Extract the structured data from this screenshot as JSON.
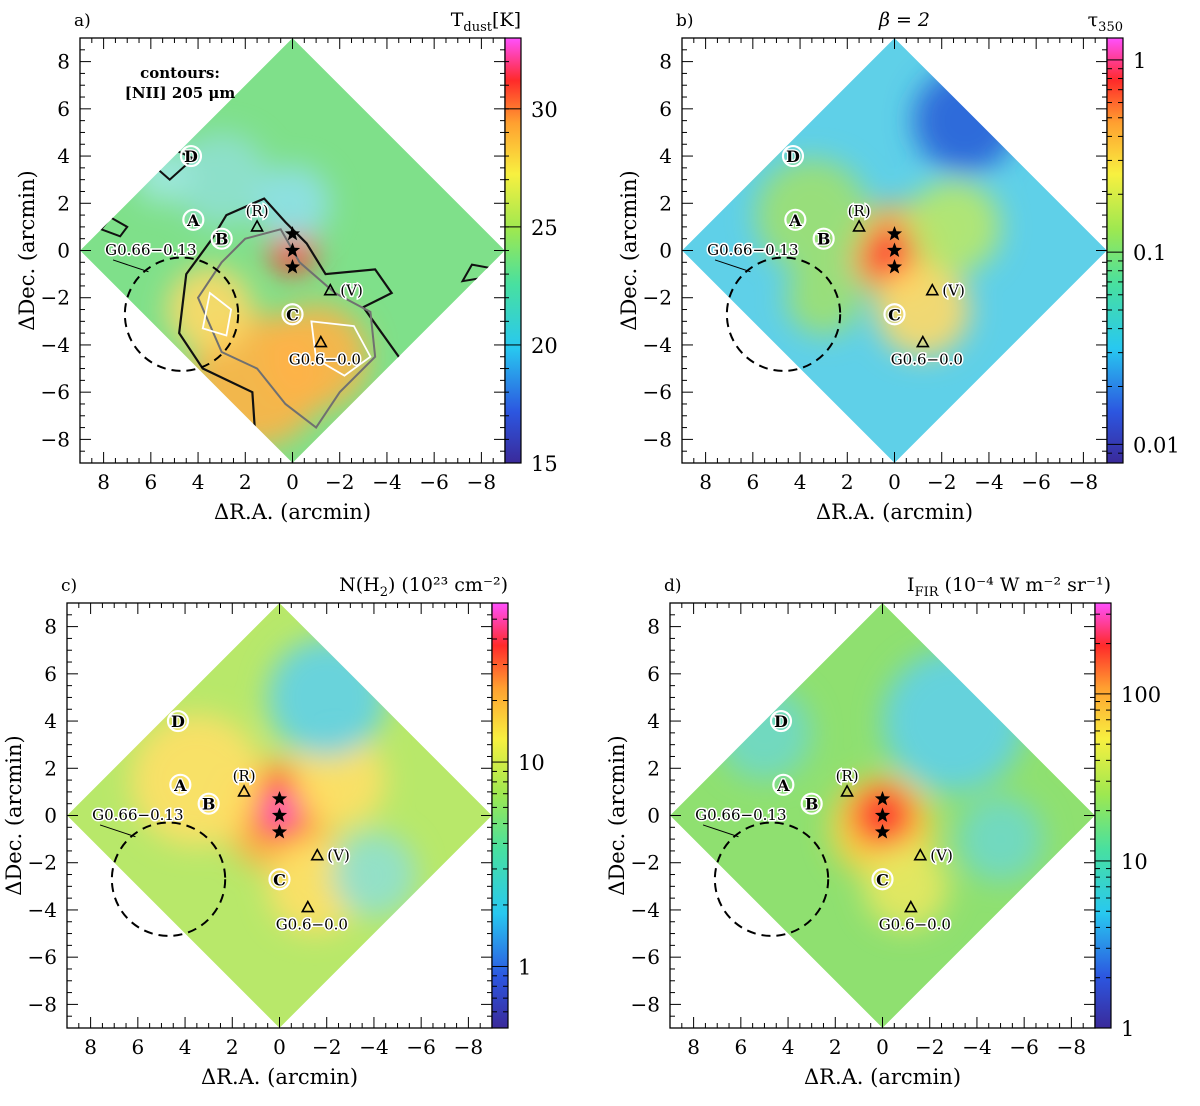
{
  "figure": {
    "description_free": true,
    "panels_count": 4
  },
  "chart_data": [
    {
      "type": "heatmap",
      "panel_label": "a)",
      "title": "T",
      "title_sub": "dust",
      "title_suffix": "[K]",
      "title_center": "",
      "xlabel": "ΔR.A. (arcmin)",
      "ylabel": "ΔDec. (arcmin)",
      "xlim": [
        9,
        -9
      ],
      "ylim": [
        -9,
        9
      ],
      "x_ticks": [
        8,
        6,
        4,
        2,
        0,
        -2,
        -4,
        -6,
        -8
      ],
      "x_tick_labels": [
        "8",
        "6",
        "4",
        "2",
        "0",
        "−2",
        "−4",
        "−6",
        "−8"
      ],
      "y_ticks": [
        8,
        6,
        4,
        2,
        0,
        -2,
        -4,
        -6,
        -8
      ],
      "y_tick_labels": [
        "8",
        "6",
        "4",
        "2",
        "0",
        "−2",
        "−4",
        "−6",
        "−8"
      ],
      "colorbar": {
        "scale": "linear",
        "range": [
          15,
          33
        ],
        "ticks": [
          15,
          20,
          25,
          30
        ],
        "tick_labels": [
          "15",
          "20",
          "25",
          "30"
        ]
      },
      "annotation": [
        "contours:",
        "[NII] 205 μm"
      ],
      "base_color": "#7fe08a",
      "blobs": [
        {
          "x": 1.5,
          "y": -5.5,
          "r": 2.8,
          "color": "#ffb347"
        },
        {
          "x": -1.0,
          "y": -4.5,
          "r": 2.2,
          "color": "#ffb347"
        },
        {
          "x": 3.5,
          "y": -2.5,
          "r": 1.8,
          "color": "#ffd966"
        },
        {
          "x": 0.0,
          "y": 0.0,
          "r": 1.0,
          "color": "#ff3030"
        },
        {
          "x": 3.0,
          "y": 3.0,
          "r": 2.0,
          "color": "#8fe0d0"
        },
        {
          "x": 0.0,
          "y": 2.0,
          "r": 1.6,
          "color": "#8fe0e8"
        },
        {
          "x": 5.5,
          "y": 3.2,
          "r": 1.2,
          "color": "#9fe8e0"
        }
      ],
      "show_contours": true,
      "sources": [
        {
          "label": "A",
          "x": 4.2,
          "y": 1.3
        },
        {
          "label": "B",
          "x": 3.0,
          "y": 0.5
        },
        {
          "label": "C",
          "x": 0.0,
          "y": -2.7
        },
        {
          "label": "D",
          "x": 4.3,
          "y": 4.0
        }
      ],
      "stars": [
        {
          "x": 0.0,
          "y": 0.7
        },
        {
          "x": 0.0,
          "y": 0.0
        },
        {
          "x": 0.0,
          "y": -0.7
        }
      ],
      "triangles": [
        {
          "label": "(R)",
          "x": 1.5,
          "y": 1.0,
          "label_pos": "above"
        },
        {
          "label": "(V)",
          "x": -1.6,
          "y": -1.7,
          "label_pos": "right"
        },
        {
          "label": "G0.6−0.0",
          "x": -1.2,
          "y": -3.9,
          "label_pos": "below"
        }
      ],
      "circle": {
        "label": "G0.66−0.13",
        "x": 4.7,
        "y": -2.7,
        "radius": 2.4
      }
    },
    {
      "type": "heatmap",
      "panel_label": "b)",
      "title": "τ",
      "title_sub": "350",
      "title_suffix": "",
      "title_center": "β = 2",
      "xlabel": "ΔR.A. (arcmin)",
      "ylabel": "ΔDec. (arcmin)",
      "xlim": [
        9,
        -9
      ],
      "ylim": [
        -9,
        9
      ],
      "x_ticks": [
        8,
        6,
        4,
        2,
        0,
        -2,
        -4,
        -6,
        -8
      ],
      "x_tick_labels": [
        "8",
        "6",
        "4",
        "2",
        "0",
        "−2",
        "−4",
        "−6",
        "−8"
      ],
      "y_ticks": [
        8,
        6,
        4,
        2,
        0,
        -2,
        -4,
        -6,
        -8
      ],
      "y_tick_labels": [
        "8",
        "6",
        "4",
        "2",
        "0",
        "−2",
        "−4",
        "−6",
        "−8"
      ],
      "colorbar": {
        "scale": "log",
        "range": [
          0.008,
          1.3
        ],
        "ticks": [
          0.01,
          0.1,
          1
        ],
        "tick_labels": [
          "0.01",
          "0.1",
          "1"
        ]
      },
      "annotation": [],
      "base_color": "#5fd0e8",
      "blobs": [
        {
          "x": 0.0,
          "y": 0.0,
          "r": 2.0,
          "color": "#ffb347"
        },
        {
          "x": 0.2,
          "y": -0.2,
          "r": 1.1,
          "color": "#ff3030"
        },
        {
          "x": -1.2,
          "y": -2.5,
          "r": 2.0,
          "color": "#ffd966"
        },
        {
          "x": 3.5,
          "y": 1.5,
          "r": 2.4,
          "color": "#9fe070"
        },
        {
          "x": -2.5,
          "y": 1.0,
          "r": 2.0,
          "color": "#b8e86a"
        },
        {
          "x": 3.0,
          "y": -2.0,
          "r": 1.6,
          "color": "#9fe070"
        },
        {
          "x": -3.0,
          "y": 5.5,
          "r": 2.2,
          "color": "#2a5fd8"
        }
      ],
      "show_contours": false,
      "sources": [
        {
          "label": "A",
          "x": 4.2,
          "y": 1.3
        },
        {
          "label": "B",
          "x": 3.0,
          "y": 0.5
        },
        {
          "label": "C",
          "x": 0.0,
          "y": -2.7
        },
        {
          "label": "D",
          "x": 4.3,
          "y": 4.0
        }
      ],
      "stars": [
        {
          "x": 0.0,
          "y": 0.7
        },
        {
          "x": 0.0,
          "y": 0.0
        },
        {
          "x": 0.0,
          "y": -0.7
        }
      ],
      "triangles": [
        {
          "label": "(R)",
          "x": 1.5,
          "y": 1.0,
          "label_pos": "above"
        },
        {
          "label": "(V)",
          "x": -1.6,
          "y": -1.7,
          "label_pos": "right"
        },
        {
          "label": "G0.6−0.0",
          "x": -1.2,
          "y": -3.9,
          "label_pos": "below"
        }
      ],
      "circle": {
        "label": "G0.66−0.13",
        "x": 4.7,
        "y": -2.7,
        "radius": 2.4
      }
    },
    {
      "type": "heatmap",
      "panel_label": "c)",
      "title": "N(H",
      "title_sub": "2",
      "title_suffix": ")  (10²³ cm⁻²)",
      "title_center": "",
      "xlabel": "ΔR.A. (arcmin)",
      "ylabel": "ΔDec. (arcmin)",
      "xlim": [
        9,
        -9
      ],
      "ylim": [
        -9,
        9
      ],
      "x_ticks": [
        8,
        6,
        4,
        2,
        0,
        -2,
        -4,
        -6,
        -8
      ],
      "x_tick_labels": [
        "8",
        "6",
        "4",
        "2",
        "0",
        "−2",
        "−4",
        "−6",
        "−8"
      ],
      "y_ticks": [
        8,
        6,
        4,
        2,
        0,
        -2,
        -4,
        -6,
        -8
      ],
      "y_tick_labels": [
        "8",
        "6",
        "4",
        "2",
        "0",
        "−2",
        "−4",
        "−6",
        "−8"
      ],
      "colorbar": {
        "scale": "log",
        "range": [
          0.5,
          60
        ],
        "ticks": [
          1,
          10
        ],
        "tick_labels": [
          "1",
          "10"
        ]
      },
      "annotation": [],
      "base_color": "#b8e86a",
      "blobs": [
        {
          "x": 0.0,
          "y": 0.0,
          "r": 2.4,
          "color": "#ffb347"
        },
        {
          "x": 0.0,
          "y": 0.4,
          "r": 1.4,
          "color": "#ff2020"
        },
        {
          "x": 0.0,
          "y": 0.2,
          "r": 0.6,
          "color": "#ff66ee"
        },
        {
          "x": 3.5,
          "y": 1.5,
          "r": 2.8,
          "color": "#ffe066"
        },
        {
          "x": -2.5,
          "y": 1.5,
          "r": 2.0,
          "color": "#ffe066"
        },
        {
          "x": -1.5,
          "y": -3.0,
          "r": 2.0,
          "color": "#ffe066"
        },
        {
          "x": -2.0,
          "y": 5.0,
          "r": 2.5,
          "color": "#5fd0e8"
        },
        {
          "x": -4.0,
          "y": -2.5,
          "r": 1.8,
          "color": "#8fe0d0"
        }
      ],
      "show_contours": false,
      "sources": [
        {
          "label": "A",
          "x": 4.2,
          "y": 1.3
        },
        {
          "label": "B",
          "x": 3.0,
          "y": 0.5
        },
        {
          "label": "C",
          "x": 0.0,
          "y": -2.7
        },
        {
          "label": "D",
          "x": 4.3,
          "y": 4.0
        }
      ],
      "stars": [
        {
          "x": 0.0,
          "y": 0.7
        },
        {
          "x": 0.0,
          "y": 0.0
        },
        {
          "x": 0.0,
          "y": -0.7
        }
      ],
      "triangles": [
        {
          "label": "(R)",
          "x": 1.5,
          "y": 1.0,
          "label_pos": "above"
        },
        {
          "label": "(V)",
          "x": -1.6,
          "y": -1.7,
          "label_pos": "right"
        },
        {
          "label": "G0.6−0.0",
          "x": -1.2,
          "y": -3.9,
          "label_pos": "below"
        }
      ],
      "circle": {
        "label": "G0.66−0.13",
        "x": 4.7,
        "y": -2.7,
        "radius": 2.4
      }
    },
    {
      "type": "heatmap",
      "panel_label": "d)",
      "title": "I",
      "title_sub": "FIR",
      "title_suffix": "  (10⁻⁴ W m⁻² sr⁻¹)",
      "title_center": "",
      "xlabel": "ΔR.A. (arcmin)",
      "ylabel": "ΔDec. (arcmin)",
      "xlim": [
        9,
        -9
      ],
      "ylim": [
        -9,
        9
      ],
      "x_ticks": [
        8,
        6,
        4,
        2,
        0,
        -2,
        -4,
        -6,
        -8
      ],
      "x_tick_labels": [
        "8",
        "6",
        "4",
        "2",
        "0",
        "−2",
        "−4",
        "−6",
        "−8"
      ],
      "y_ticks": [
        8,
        6,
        4,
        2,
        0,
        -2,
        -4,
        -6,
        -8
      ],
      "y_tick_labels": [
        "8",
        "6",
        "4",
        "2",
        "0",
        "−2",
        "−4",
        "−6",
        "−8"
      ],
      "colorbar": {
        "scale": "log",
        "range": [
          1,
          350
        ],
        "ticks": [
          1,
          10,
          100
        ],
        "tick_labels": [
          "1",
          "10",
          "100"
        ]
      },
      "annotation": [],
      "base_color": "#8fe070",
      "blobs": [
        {
          "x": 0.0,
          "y": -0.5,
          "r": 2.2,
          "color": "#ffd040"
        },
        {
          "x": 0.0,
          "y": 0.0,
          "r": 1.3,
          "color": "#ff3030"
        },
        {
          "x": -1.0,
          "y": -3.0,
          "r": 1.8,
          "color": "#e8e860"
        },
        {
          "x": -3.0,
          "y": 4.0,
          "r": 3.0,
          "color": "#5fd0e8"
        },
        {
          "x": 5.0,
          "y": 3.5,
          "r": 2.0,
          "color": "#6fd8c8"
        },
        {
          "x": -5.0,
          "y": -1.0,
          "r": 1.8,
          "color": "#6fd8c8"
        }
      ],
      "show_contours": false,
      "sources": [
        {
          "label": "A",
          "x": 4.2,
          "y": 1.3
        },
        {
          "label": "B",
          "x": 3.0,
          "y": 0.5
        },
        {
          "label": "C",
          "x": 0.0,
          "y": -2.7
        },
        {
          "label": "D",
          "x": 4.3,
          "y": 4.0
        }
      ],
      "stars": [
        {
          "x": 0.0,
          "y": 0.7
        },
        {
          "x": 0.0,
          "y": 0.0
        },
        {
          "x": 0.0,
          "y": -0.7
        }
      ],
      "triangles": [
        {
          "label": "(R)",
          "x": 1.5,
          "y": 1.0,
          "label_pos": "above"
        },
        {
          "label": "(V)",
          "x": -1.6,
          "y": -1.7,
          "label_pos": "right"
        },
        {
          "label": "G0.6−0.0",
          "x": -1.2,
          "y": -3.9,
          "label_pos": "below"
        }
      ],
      "circle": {
        "label": "G0.66−0.13",
        "x": 4.7,
        "y": -2.7,
        "radius": 2.4
      }
    }
  ]
}
